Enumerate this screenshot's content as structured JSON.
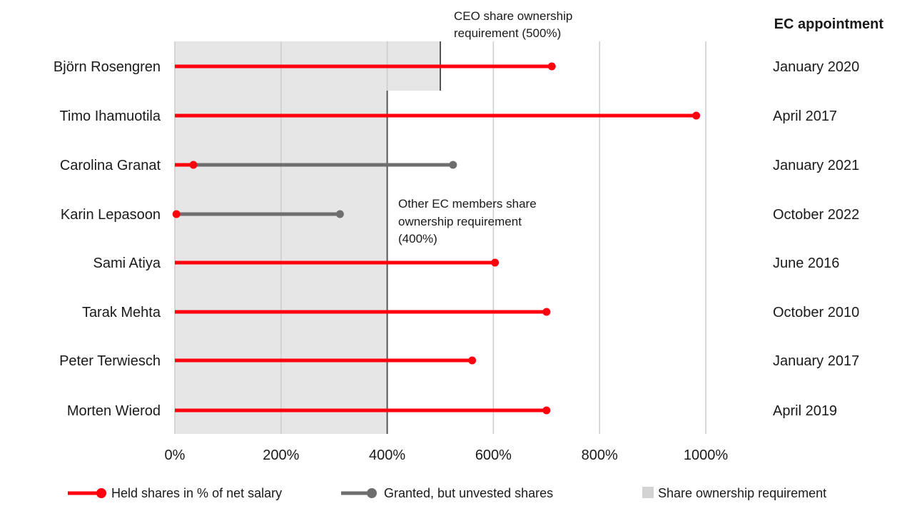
{
  "chart_data": {
    "type": "lollipop",
    "right_header": "EC appointment",
    "x_ticks": [
      {
        "value": 0,
        "label": "0%"
      },
      {
        "value": 200,
        "label": "200%"
      },
      {
        "value": 400,
        "label": "400%"
      },
      {
        "value": 600,
        "label": "600%"
      },
      {
        "value": 800,
        "label": "800%"
      },
      {
        "value": 1000,
        "label": "1000%"
      }
    ],
    "xlim": [
      0,
      1000
    ],
    "grid": true,
    "rows": [
      {
        "name": "Björn Rosengren",
        "appointment": "January 2020",
        "held": 710,
        "granted": null,
        "requirement": 500
      },
      {
        "name": "Timo Ihamuotila",
        "appointment": "April 2017",
        "held": 982,
        "granted": null,
        "requirement": 400
      },
      {
        "name": "Carolina Granat",
        "appointment": "January 2021",
        "held": 35,
        "granted": 524,
        "requirement": 400
      },
      {
        "name": "Karin Lepasoon",
        "appointment": "October 2022",
        "held": 3,
        "granted": 311,
        "requirement": 400
      },
      {
        "name": "Sami Atiya",
        "appointment": "June 2016",
        "held": 603,
        "granted": null,
        "requirement": 400
      },
      {
        "name": "Tarak Mehta",
        "appointment": "October 2010",
        "held": 700,
        "granted": null,
        "requirement": 400
      },
      {
        "name": "Peter Terwiesch",
        "appointment": "January 2017",
        "held": 560,
        "granted": null,
        "requirement": 400
      },
      {
        "name": "Morten Wierod",
        "appointment": "April 2019",
        "held": 700,
        "granted": null,
        "requirement": 400
      }
    ],
    "annotations": {
      "ceo_line1": "CEO share ownership",
      "ceo_line2": "requirement (500%)",
      "other_line1": "Other EC members share",
      "other_line2": "ownership requirement",
      "other_line3": "(400%)"
    },
    "legend": {
      "placement": "bottom",
      "held": "Held shares in % of net salary",
      "granted": "Granted, but unvested shares",
      "requirement": "Share ownership requirement"
    },
    "colors": {
      "held": "#ff000f",
      "granted": "#6e6e6e",
      "requirement_fill": "#e6e6e6",
      "requirement_line": "#555555",
      "grid": "#cccccc"
    }
  }
}
